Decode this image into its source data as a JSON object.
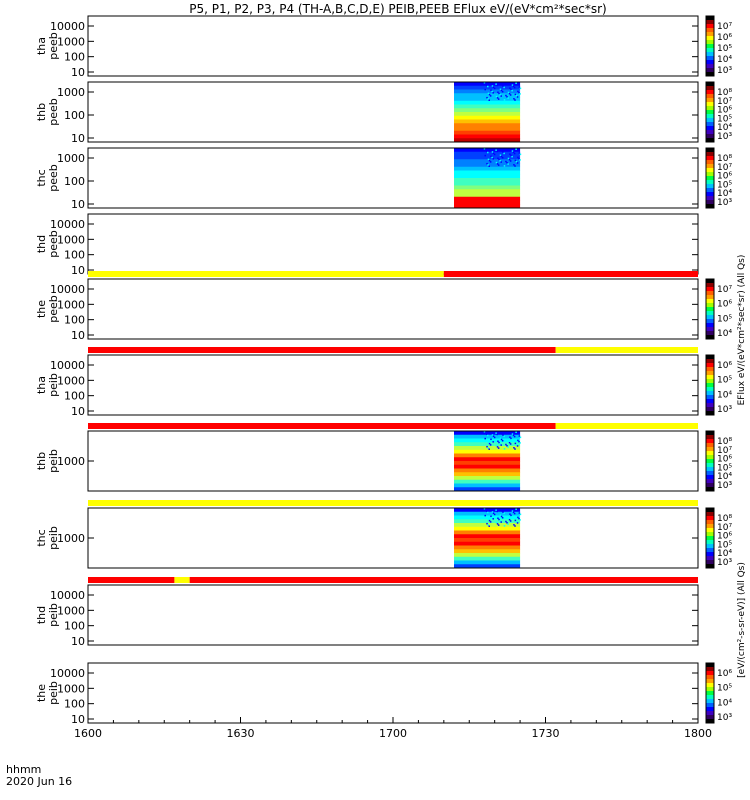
{
  "title": "P5, P1, P2, P3, P4 (TH-A,B,C,D,E) PEIB,PEEB EFlux eV/(eV*cm²*sec*sr)",
  "footer": {
    "time_label": "hhmm",
    "date_label": "2020 Jun 16"
  },
  "colorbar_title_right_top": "EFlux eV/(eV*cm²*sec*sr) (All Qs)",
  "colorbar_title_right_bottom": "[eV/(cm²-s-sr-eV)] (All Qs)",
  "chart_data": {
    "type": "heatmap",
    "x_axis": {
      "ticks": [
        "1600",
        "1630",
        "1700",
        "1730",
        "1800"
      ],
      "range": [
        "16:00",
        "18:00"
      ],
      "label": "hhmm"
    },
    "panels": [
      {
        "probe": "tha",
        "product": "peeb",
        "ylabel": [
          "tha",
          "peeb"
        ],
        "ytick_labels": [
          "10000",
          "1000",
          "100",
          "10"
        ],
        "colorbar_labels": [
          "10⁷",
          "10⁶",
          "10⁵",
          "10⁴",
          "10³"
        ],
        "spectrum": null
      },
      {
        "probe": "thb",
        "product": "peeb",
        "ylabel": [
          "thb",
          "peeb"
        ],
        "ytick_labels": [
          "1000",
          "100",
          "10"
        ],
        "colorbar_labels": [
          "10⁸",
          "10⁷",
          "10⁶",
          "10⁵",
          "10⁴",
          "10³"
        ],
        "spectrum": {
          "t_start": "17:12",
          "t_end": "17:25",
          "profile": "red-low"
        }
      },
      {
        "probe": "thc",
        "product": "peeb",
        "ylabel": [
          "thc",
          "peeb"
        ],
        "ytick_labels": [
          "1000",
          "100",
          "10"
        ],
        "colorbar_labels": [
          "10⁸",
          "10⁷",
          "10⁶",
          "10⁵",
          "10⁴",
          "10³"
        ],
        "spectrum": {
          "t_start": "17:12",
          "t_end": "17:25",
          "profile": "green-mid"
        }
      },
      {
        "probe": "thd",
        "product": "peeb",
        "ylabel": [
          "thd",
          "peeb"
        ],
        "ytick_labels": [
          "10000",
          "1000",
          "100",
          "10"
        ],
        "colorbar_labels": [],
        "spectrum": null
      },
      {
        "probe": "the",
        "product": "peeb",
        "ylabel": [
          "the",
          "peeb"
        ],
        "ytick_labels": [
          "10000",
          "1000",
          "100",
          "10"
        ],
        "colorbar_labels": [
          "10⁷",
          "10⁶",
          "10⁵",
          "10⁴"
        ],
        "spectrum": null,
        "status_bar": [
          {
            "t_start": "16:00",
            "t_end": "17:10",
            "color": "#ffff00"
          },
          {
            "t_start": "17:10",
            "t_end": "18:00",
            "color": "#ff0000"
          }
        ]
      },
      {
        "probe": "tha",
        "product": "peib",
        "ylabel": [
          "tha",
          "peib"
        ],
        "ytick_labels": [
          "10000",
          "1000",
          "100",
          "10"
        ],
        "colorbar_labels": [
          "10⁶",
          "10⁵",
          "10⁴",
          "10³"
        ],
        "spectrum": null,
        "status_bar": [
          {
            "t_start": "16:00",
            "t_end": "17:32",
            "color": "#ff0000"
          },
          {
            "t_start": "17:32",
            "t_end": "18:00",
            "color": "#ffff00"
          }
        ]
      },
      {
        "probe": "thb",
        "product": "peib",
        "ylabel": [
          "thb",
          "peib"
        ],
        "ytick_labels": [
          "1000"
        ],
        "colorbar_labels": [
          "10⁸",
          "10⁷",
          "10⁶",
          "10⁵",
          "10⁴",
          "10³"
        ],
        "spectrum": {
          "t_start": "17:12",
          "t_end": "17:25",
          "profile": "ion-banded"
        },
        "status_bar": [
          {
            "t_start": "16:00",
            "t_end": "17:32",
            "color": "#ff0000"
          },
          {
            "t_start": "17:32",
            "t_end": "18:00",
            "color": "#ffff00"
          }
        ]
      },
      {
        "probe": "thc",
        "product": "peib",
        "ylabel": [
          "thc",
          "peib"
        ],
        "ytick_labels": [
          "1000"
        ],
        "colorbar_labels": [
          "10⁸",
          "10⁷",
          "10⁶",
          "10⁵",
          "10⁴",
          "10³"
        ],
        "spectrum": {
          "t_start": "17:12",
          "t_end": "17:25",
          "profile": "ion-banded"
        },
        "status_bar": [
          {
            "t_start": "16:00",
            "t_end": "18:00",
            "color": "#ffff00"
          }
        ]
      },
      {
        "probe": "thd",
        "product": "peib",
        "ylabel": [
          "thd",
          "peib"
        ],
        "ytick_labels": [
          "10000",
          "1000",
          "100",
          "10"
        ],
        "colorbar_labels": [],
        "spectrum": null,
        "status_bar": [
          {
            "t_start": "16:00",
            "t_end": "16:17",
            "color": "#ff0000"
          },
          {
            "t_start": "16:17",
            "t_end": "16:20",
            "color": "#ffff00"
          },
          {
            "t_start": "16:20",
            "t_end": "18:00",
            "color": "#ff0000"
          }
        ]
      },
      {
        "probe": "the",
        "product": "peib",
        "ylabel": [
          "the",
          "peib"
        ],
        "ytick_labels": [
          "10000",
          "1000",
          "100",
          "10"
        ],
        "colorbar_labels": [
          "10⁶",
          "10⁵",
          "10⁴",
          "10³"
        ],
        "spectrum": null
      }
    ]
  }
}
